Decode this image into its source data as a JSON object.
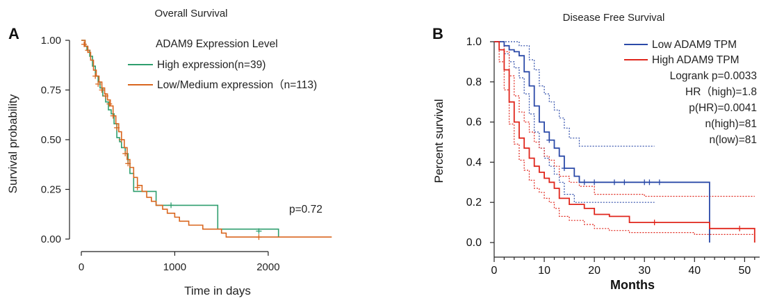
{
  "chart_data": [
    {
      "type": "line",
      "panel_label": "A",
      "title": "Overall Survival",
      "xlabel": "Time in days",
      "ylabel": "Survival probability",
      "xlim": [
        0,
        2700
      ],
      "ylim": [
        0,
        1.0
      ],
      "x_ticks": [
        0,
        1000,
        2000
      ],
      "y_ticks": [
        0.0,
        0.25,
        0.5,
        0.75,
        1.0
      ],
      "y_tick_labels": [
        "0.00",
        "0.25",
        "0.50",
        "0.75",
        "1.00"
      ],
      "legend_title": "ADAM9 Expression Level",
      "legend_placement": "top-right",
      "grid": false,
      "annotation": "p=0.72",
      "series": [
        {
          "name": "High expression(n=39)",
          "color": "#2e9e6e",
          "steps": [
            [
              0,
              1.0
            ],
            [
              40,
              0.97
            ],
            [
              60,
              0.95
            ],
            [
              90,
              0.92
            ],
            [
              120,
              0.87
            ],
            [
              150,
              0.82
            ],
            [
              180,
              0.79
            ],
            [
              200,
              0.76
            ],
            [
              230,
              0.72
            ],
            [
              260,
              0.69
            ],
            [
              290,
              0.65
            ],
            [
              320,
              0.63
            ],
            [
              350,
              0.58
            ],
            [
              380,
              0.51
            ],
            [
              410,
              0.49
            ],
            [
              430,
              0.46
            ],
            [
              470,
              0.43
            ],
            [
              500,
              0.38
            ],
            [
              520,
              0.33
            ],
            [
              560,
              0.24
            ],
            [
              700,
              0.24
            ],
            [
              800,
              0.17
            ],
            [
              1450,
              0.17
            ],
            [
              1460,
              0.05
            ],
            [
              2110,
              0.05
            ],
            [
              2110,
              0.01
            ]
          ],
          "censors": [
            [
              960,
              0.17
            ],
            [
              1900,
              0.04
            ]
          ]
        },
        {
          "name": "Low/Medium expression（n=113)",
          "color": "#d9661e",
          "steps": [
            [
              0,
              1.0
            ],
            [
              40,
              0.97
            ],
            [
              70,
              0.94
            ],
            [
              100,
              0.9
            ],
            [
              130,
              0.85
            ],
            [
              160,
              0.82
            ],
            [
              190,
              0.79
            ],
            [
              220,
              0.76
            ],
            [
              250,
              0.73
            ],
            [
              280,
              0.7
            ],
            [
              310,
              0.67
            ],
            [
              340,
              0.62
            ],
            [
              370,
              0.58
            ],
            [
              400,
              0.54
            ],
            [
              430,
              0.5
            ],
            [
              460,
              0.46
            ],
            [
              490,
              0.4
            ],
            [
              520,
              0.36
            ],
            [
              560,
              0.31
            ],
            [
              600,
              0.27
            ],
            [
              650,
              0.24
            ],
            [
              700,
              0.21
            ],
            [
              750,
              0.19
            ],
            [
              800,
              0.17
            ],
            [
              870,
              0.15
            ],
            [
              920,
              0.13
            ],
            [
              1000,
              0.11
            ],
            [
              1050,
              0.09
            ],
            [
              1150,
              0.07
            ],
            [
              1300,
              0.05
            ],
            [
              1500,
              0.03
            ],
            [
              1550,
              0.01
            ],
            [
              2680,
              0.01
            ]
          ],
          "censors": [
            [
              30,
              0.98
            ],
            [
              70,
              0.95
            ],
            [
              150,
              0.82
            ],
            [
              180,
              0.78
            ],
            [
              220,
              0.75
            ],
            [
              260,
              0.72
            ],
            [
              300,
              0.68
            ],
            [
              340,
              0.62
            ],
            [
              380,
              0.56
            ],
            [
              430,
              0.5
            ],
            [
              470,
              0.43
            ],
            [
              500,
              0.38
            ],
            [
              600,
              0.26
            ],
            [
              1900,
              0.01
            ]
          ]
        }
      ]
    },
    {
      "type": "line",
      "panel_label": "B",
      "title": "Disease Free Survival",
      "xlabel": "Months",
      "ylabel": "Percent survival",
      "xlim": [
        0,
        53
      ],
      "ylim": [
        0,
        1.0
      ],
      "x_ticks": [
        0,
        10,
        20,
        30,
        40,
        50
      ],
      "y_ticks": [
        0.0,
        0.2,
        0.4,
        0.6,
        0.8,
        1.0
      ],
      "y_tick_labels": [
        "0.0",
        "0.2",
        "0.4",
        "0.6",
        "0.8",
        "1.0"
      ],
      "legend_placement": "top-right",
      "grid": false,
      "annotations": [
        "Logrank p=0.0033",
        "HR（high)=1.8",
        "p(HR)=0.0041",
        "n(high)=81",
        "n(low)=81"
      ],
      "series": [
        {
          "name": "Low ADAM9 TPM",
          "color": "#2b4aa8",
          "steps": [
            [
              0,
              1.0
            ],
            [
              2,
              0.98
            ],
            [
              3,
              0.96
            ],
            [
              4,
              0.95
            ],
            [
              5,
              0.93
            ],
            [
              6,
              0.85
            ],
            [
              7,
              0.78
            ],
            [
              8,
              0.68
            ],
            [
              9,
              0.6
            ],
            [
              10,
              0.55
            ],
            [
              11,
              0.51
            ],
            [
              12,
              0.47
            ],
            [
              13,
              0.43
            ],
            [
              14,
              0.37
            ],
            [
              16,
              0.33
            ],
            [
              17,
              0.3
            ],
            [
              43,
              0.3
            ],
            [
              43,
              0.0
            ]
          ],
          "ci_upper": [
            [
              0,
              1.0
            ],
            [
              3,
              1.0
            ],
            [
              5,
              0.98
            ],
            [
              7,
              0.91
            ],
            [
              8,
              0.86
            ],
            [
              9,
              0.78
            ],
            [
              10,
              0.74
            ],
            [
              11,
              0.7
            ],
            [
              12,
              0.66
            ],
            [
              13,
              0.62
            ],
            [
              14,
              0.57
            ],
            [
              15,
              0.52
            ],
            [
              17,
              0.48
            ],
            [
              32,
              0.48
            ]
          ],
          "ci_lower": [
            [
              0,
              1.0
            ],
            [
              2,
              0.94
            ],
            [
              3,
              0.9
            ],
            [
              4,
              0.87
            ],
            [
              5,
              0.82
            ],
            [
              6,
              0.74
            ],
            [
              7,
              0.64
            ],
            [
              8,
              0.55
            ],
            [
              9,
              0.47
            ],
            [
              10,
              0.42
            ],
            [
              11,
              0.38
            ],
            [
              12,
              0.34
            ],
            [
              13,
              0.3
            ],
            [
              14,
              0.24
            ],
            [
              16,
              0.2
            ],
            [
              32,
              0.2
            ]
          ],
          "censors": [
            [
              11,
              0.51
            ],
            [
              14,
              0.37
            ],
            [
              18,
              0.3
            ],
            [
              20,
              0.3
            ],
            [
              24,
              0.3
            ],
            [
              26,
              0.3
            ],
            [
              30,
              0.3
            ],
            [
              31,
              0.3
            ],
            [
              33,
              0.3
            ]
          ]
        },
        {
          "name": "High ADAM9 TPM",
          "color": "#e0261c",
          "steps": [
            [
              0,
              1.0
            ],
            [
              1,
              0.96
            ],
            [
              2,
              0.86
            ],
            [
              3,
              0.7
            ],
            [
              4,
              0.6
            ],
            [
              5,
              0.52
            ],
            [
              6,
              0.47
            ],
            [
              7,
              0.42
            ],
            [
              8,
              0.38
            ],
            [
              9,
              0.35
            ],
            [
              10,
              0.32
            ],
            [
              11,
              0.3
            ],
            [
              12,
              0.27
            ],
            [
              13,
              0.22
            ],
            [
              15,
              0.19
            ],
            [
              18,
              0.17
            ],
            [
              20,
              0.14
            ],
            [
              23,
              0.13
            ],
            [
              27,
              0.1
            ],
            [
              43,
              0.1
            ],
            [
              43,
              0.07
            ],
            [
              52,
              0.07
            ],
            [
              52,
              0.0
            ]
          ],
          "ci_upper": [
            [
              0,
              1.0
            ],
            [
              1,
              1.0
            ],
            [
              2,
              0.95
            ],
            [
              3,
              0.83
            ],
            [
              4,
              0.73
            ],
            [
              5,
              0.65
            ],
            [
              6,
              0.6
            ],
            [
              7,
              0.55
            ],
            [
              8,
              0.5
            ],
            [
              9,
              0.47
            ],
            [
              10,
              0.43
            ],
            [
              11,
              0.41
            ],
            [
              12,
              0.38
            ],
            [
              13,
              0.33
            ],
            [
              15,
              0.3
            ],
            [
              17,
              0.28
            ],
            [
              20,
              0.24
            ],
            [
              26,
              0.24
            ],
            [
              30,
              0.23
            ],
            [
              52,
              0.23
            ]
          ],
          "ci_lower": [
            [
              0,
              1.0
            ],
            [
              1,
              0.9
            ],
            [
              2,
              0.76
            ],
            [
              3,
              0.59
            ],
            [
              4,
              0.49
            ],
            [
              5,
              0.41
            ],
            [
              6,
              0.36
            ],
            [
              7,
              0.31
            ],
            [
              8,
              0.27
            ],
            [
              9,
              0.25
            ],
            [
              10,
              0.22
            ],
            [
              11,
              0.2
            ],
            [
              12,
              0.17
            ],
            [
              13,
              0.13
            ],
            [
              15,
              0.11
            ],
            [
              18,
              0.09
            ],
            [
              20,
              0.07
            ],
            [
              23,
              0.06
            ],
            [
              27,
              0.05
            ],
            [
              40,
              0.04
            ],
            [
              52,
              0.03
            ]
          ],
          "censors": [
            [
              32,
              0.1
            ],
            [
              49,
              0.07
            ]
          ]
        }
      ]
    }
  ]
}
